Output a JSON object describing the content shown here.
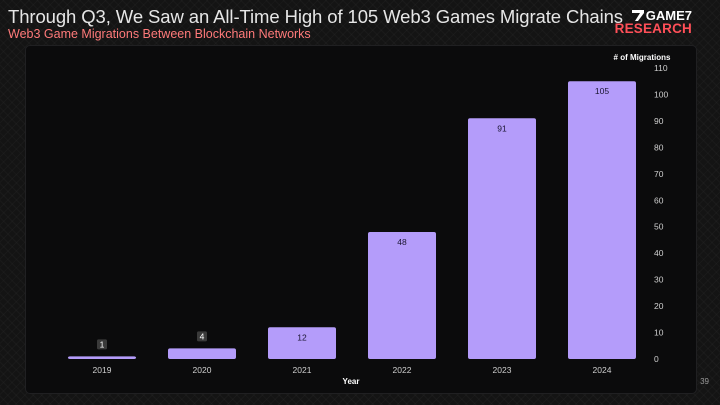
{
  "header": {
    "title": "Through Q3, We Saw an All-Time High of 105 Web3 Games Migrate Chains",
    "subtitle": "Web3 Game Migrations Between Blockchain Networks"
  },
  "logo": {
    "line1": "GAME7",
    "line2": "RESEARCH"
  },
  "page_number": "39",
  "colors": {
    "bar": "#b49cfa",
    "subtitle": "#ff7a7a",
    "logo_accent": "#ff4f58"
  },
  "chart_data": {
    "type": "bar",
    "title": "Web3 Game Migrations Between Blockchain Networks",
    "xlabel": "Year",
    "ylabel": "# of Migrations",
    "categories": [
      "2019",
      "2020",
      "2021",
      "2022",
      "2023",
      "2024"
    ],
    "values": [
      1,
      4,
      12,
      48,
      91,
      105
    ],
    "ylim": [
      0,
      110
    ],
    "yticks": [
      0,
      10,
      20,
      30,
      40,
      50,
      60,
      70,
      80,
      90,
      100,
      110
    ],
    "y_axis_side": "right",
    "grid": false
  }
}
